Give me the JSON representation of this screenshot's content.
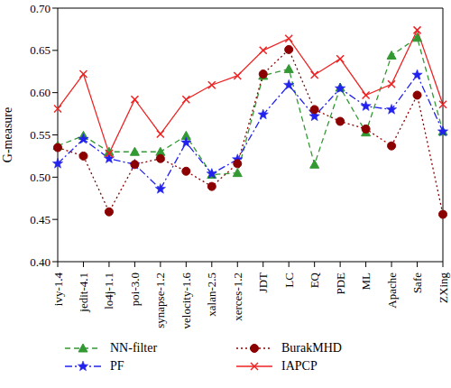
{
  "chart_data": {
    "type": "line",
    "y_label": "G-measure",
    "categories": [
      "ivy-1.4",
      "jedit-4.1",
      "lo4j-1.1",
      "poi-3.0",
      "synapse-1.2",
      "velocity-1.6",
      "xalan-2.5",
      "xerces-1.2",
      "JDT",
      "LC",
      "EQ",
      "PDE",
      "ML",
      "Apache",
      "Safe",
      "ZXing"
    ],
    "ylim": [
      0.4,
      0.7
    ],
    "yticks": [
      {
        "value": 0.4,
        "label": "0.40"
      },
      0.45,
      {
        "value": 0.5,
        "label": "0.50"
      },
      0.55,
      {
        "value": 0.6,
        "label": "0.60"
      },
      0.65,
      {
        "value": 0.7,
        "label": "0.70"
      }
    ],
    "legend": "bottom",
    "series": [
      {
        "name": "NN-filter",
        "color": "#339933",
        "marker": "triangle",
        "line_style": "dashed",
        "values": [
          0.537,
          0.549,
          0.53,
          0.53,
          0.53,
          0.549,
          0.503,
          0.505,
          0.62,
          0.628,
          0.515,
          0.606,
          0.553,
          0.644,
          0.665,
          0.554
        ]
      },
      {
        "name": "PF",
        "color": "#2222ee",
        "marker": "star",
        "line_style": "dashdot",
        "values": [
          0.516,
          0.545,
          0.522,
          0.515,
          0.486,
          0.541,
          0.504,
          0.521,
          0.574,
          0.609,
          0.572,
          0.605,
          0.584,
          0.58,
          0.621,
          0.554
        ]
      },
      {
        "name": "BurakMHD",
        "color": "#8b0000",
        "marker": "circle",
        "line_style": "dotted",
        "values": [
          0.535,
          0.525,
          0.459,
          0.515,
          0.522,
          0.507,
          0.489,
          0.516,
          0.622,
          0.651,
          0.58,
          0.566,
          0.557,
          0.537,
          0.597,
          0.456
        ]
      },
      {
        "name": "IAPCP",
        "color": "#ee2222",
        "marker": "x",
        "line_style": "solid",
        "values": [
          0.581,
          0.622,
          0.528,
          0.592,
          0.551,
          0.592,
          0.609,
          0.62,
          0.65,
          0.664,
          0.621,
          0.64,
          0.597,
          0.61,
          0.674,
          0.586
        ]
      }
    ]
  }
}
